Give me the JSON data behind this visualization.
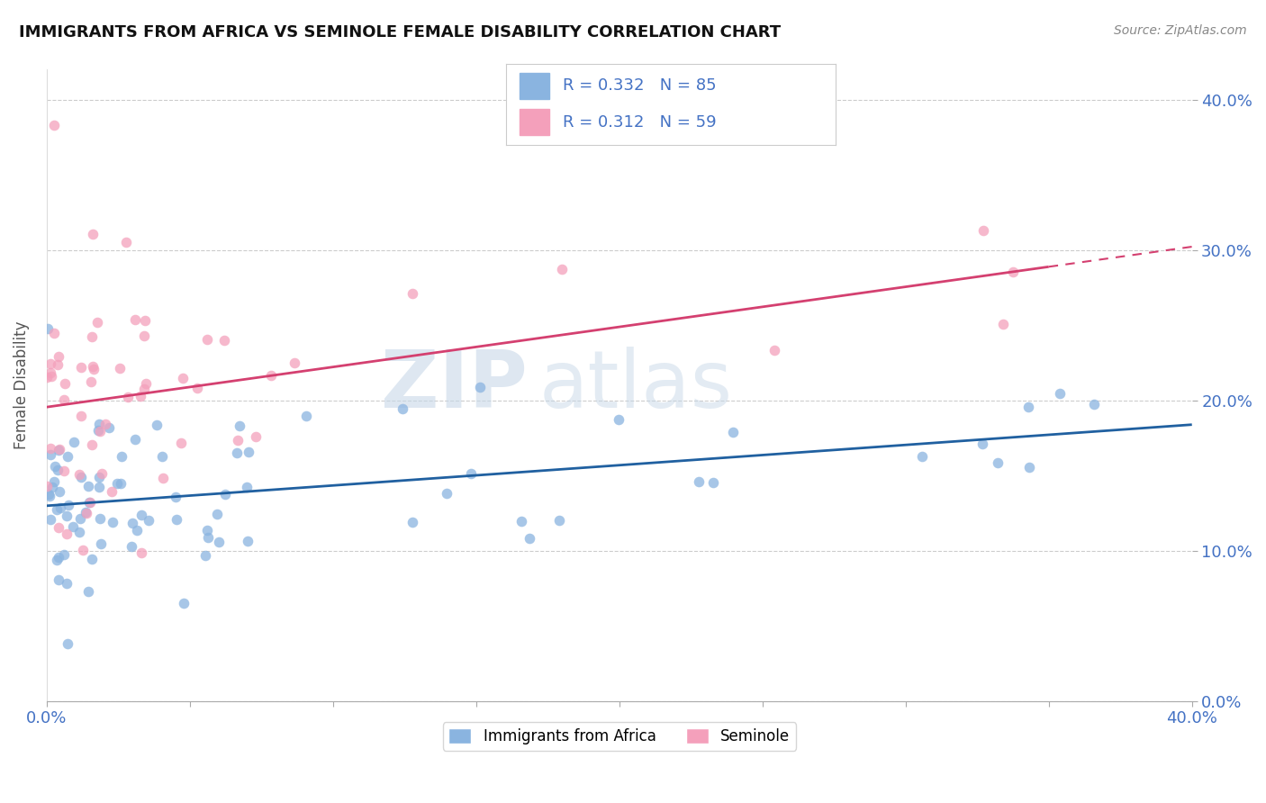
{
  "title": "IMMIGRANTS FROM AFRICA VS SEMINOLE FEMALE DISABILITY CORRELATION CHART",
  "source": "Source: ZipAtlas.com",
  "ylabel": "Female Disability",
  "legend1_label": "R = 0.332   N = 85",
  "legend2_label": "R = 0.312   N = 59",
  "legend_bottom1": "Immigrants from Africa",
  "legend_bottom2": "Seminole",
  "blue_color": "#8ab4e0",
  "pink_color": "#f4a0bb",
  "trendline_blue": "#2060a0",
  "trendline_pink": "#d44070",
  "watermark_zip": "ZIP",
  "watermark_atlas": "atlas",
  "xlim": [
    0.0,
    0.4
  ],
  "ylim": [
    0.0,
    0.42
  ],
  "blue_R": 0.332,
  "blue_N": 85,
  "pink_R": 0.312,
  "pink_N": 59
}
